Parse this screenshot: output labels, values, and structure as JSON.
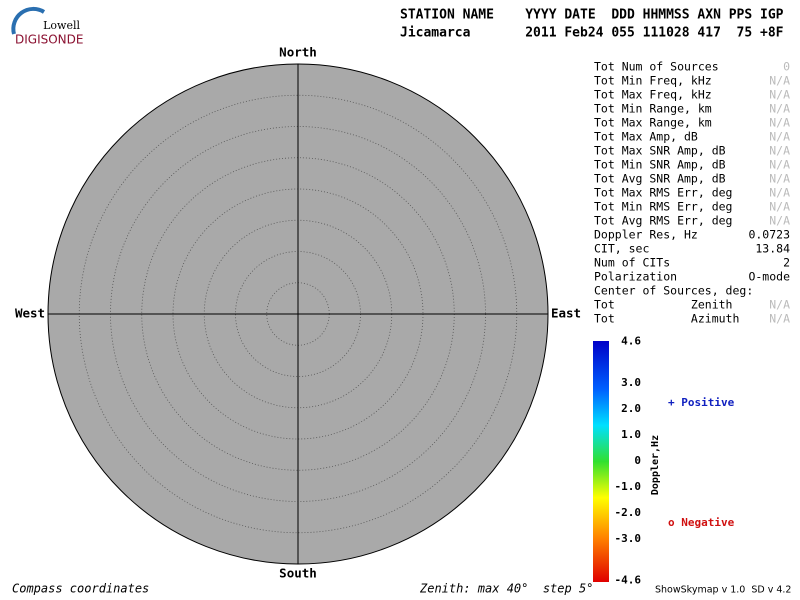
{
  "logo": {
    "top": "Lowell",
    "bottom": "DIGISONDE"
  },
  "header": {
    "line1": "STATION NAME    YYYY DATE  DDD HHMMSS AXN PPS IGP",
    "line2": "Jicamarca       2011 Feb24 055 111028 417  75 +8F"
  },
  "compass": {
    "north": "North",
    "south": "South",
    "west": "West",
    "east": "East"
  },
  "stats": {
    "rows": [
      [
        "Tot Num of Sources",
        "0"
      ],
      [
        "Tot Min Freq, kHz",
        "N/A"
      ],
      [
        "Tot Max Freq, kHz",
        "N/A"
      ],
      [
        "Tot Min Range, km",
        "N/A"
      ],
      [
        "Tot Max Range, km",
        "N/A"
      ],
      [
        "Tot Max Amp, dB",
        "N/A"
      ],
      [
        "Tot Max SNR Amp, dB",
        "N/A"
      ],
      [
        "Tot Min SNR Amp, dB",
        "N/A"
      ],
      [
        "Tot Avg SNR Amp, dB",
        "N/A"
      ],
      [
        "Tot Max RMS Err, deg",
        "N/A"
      ],
      [
        "Tot Min RMS Err, deg",
        "N/A"
      ],
      [
        "Tot Avg RMS Err, deg",
        "N/A"
      ],
      [
        "Doppler Res, Hz",
        "0.0723"
      ],
      [
        "CIT, sec",
        "13.84"
      ],
      [
        "Num of CITs",
        "2"
      ],
      [
        "Polarization",
        "O-mode"
      ],
      [
        "Center of Sources, deg:",
        ""
      ],
      [
        "Tot           Zenith",
        "N/A"
      ],
      [
        "Tot           Azimuth",
        "N/A"
      ]
    ]
  },
  "colorbar": {
    "ticks": [
      "4.6",
      "3.0",
      "2.0",
      "1.0",
      "0",
      "-1.0",
      "-2.0",
      "-3.0",
      "-4.6"
    ],
    "label": "Doppler,Hz"
  },
  "legend": {
    "positive": "+ Positive",
    "negative": "o Negative"
  },
  "footer": {
    "left": "Compass coordinates",
    "middle": "Zenith: max 40°  step 5°",
    "right": "ShowSkymap v 1.0  SD v 4.2"
  }
}
